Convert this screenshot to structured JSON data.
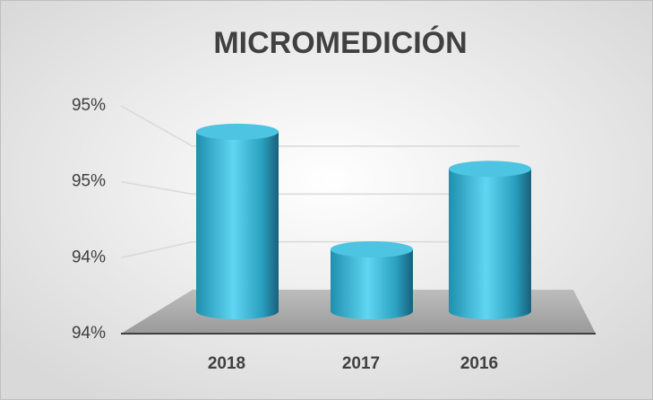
{
  "chart_data": {
    "type": "bar",
    "title": "MICROMEDICIÓN",
    "categories": [
      "2018",
      "2017",
      "2016"
    ],
    "values": [
      94.95,
      94.0,
      94.65
    ],
    "color": "#3ab8d8",
    "ylim": [
      93.5,
      95
    ],
    "yticks": [
      {
        "value": 93.5,
        "label": "94%"
      },
      {
        "value": 94.0,
        "label": "94%"
      },
      {
        "value": 94.5,
        "label": "95%"
      },
      {
        "value": 95.0,
        "label": "95%"
      }
    ],
    "grid": true
  }
}
